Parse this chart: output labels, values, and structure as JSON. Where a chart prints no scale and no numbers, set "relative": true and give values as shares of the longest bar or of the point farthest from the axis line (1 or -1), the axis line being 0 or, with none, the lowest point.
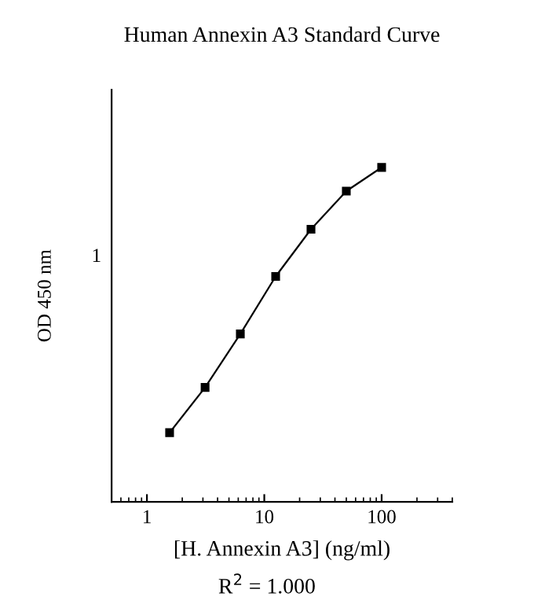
{
  "chart_data": {
    "type": "line",
    "title": "Human Annexin A3 Standard Curve",
    "xlabel": "[H. Annexin A3] (ng/ml)",
    "ylabel": "OD 450 nm",
    "x": [
      1.56,
      3.13,
      6.25,
      12.5,
      25,
      50,
      100
    ],
    "series": [
      {
        "color": "#000000",
        "values": [
          0.207,
          0.342,
          0.502,
          0.674,
          0.815,
          0.929,
          1
        ]
      }
    ],
    "relative": true,
    "log": "x",
    "xlim": [
      0.5,
      400
    ],
    "xticks": [
      1,
      10,
      100
    ],
    "marker": "square",
    "line_style": "solid",
    "grid": false,
    "legend": false,
    "annotations": [
      "1",
      "R$^{2}$ = 1.000"
    ]
  }
}
